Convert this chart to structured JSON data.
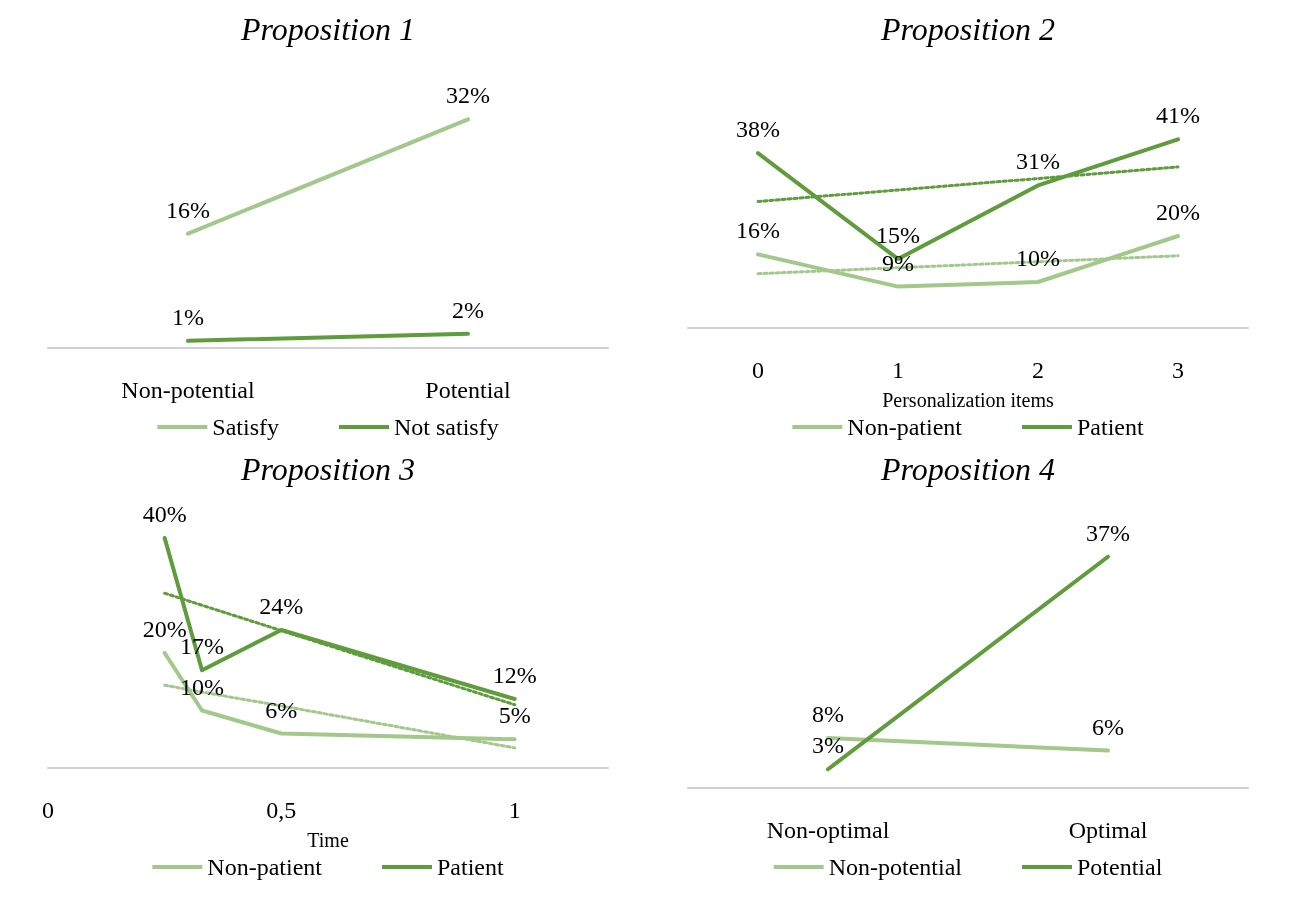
{
  "chart_data": [
    {
      "type": "line",
      "title": "Proposition 1",
      "categories": [
        "Non-potential",
        "Potential"
      ],
      "series": [
        {
          "name": "Satisfy",
          "color": "#a2c98b",
          "values": [
            16,
            32
          ],
          "value_labels": [
            "16%",
            "32%"
          ]
        },
        {
          "name": "Not satisfy",
          "color": "#5e9c3c",
          "values": [
            1,
            2
          ],
          "value_labels": [
            "1%",
            "2%"
          ]
        }
      ],
      "legend": "bottom",
      "grid": false,
      "marker": "none",
      "line_style": "solid"
    },
    {
      "type": "line",
      "title": "Proposition 2",
      "xlabel": "Personalization items",
      "categories": [
        "0",
        "1",
        "2",
        "3"
      ],
      "series": [
        {
          "name": "Non-patient",
          "color": "#a2c98b",
          "values": [
            16,
            9,
            10,
            20
          ],
          "value_labels": [
            "16%",
            "9%",
            "10%",
            "20%"
          ]
        },
        {
          "name": "Patient",
          "color": "#5e9c3c",
          "values": [
            38,
            15,
            31,
            41
          ],
          "value_labels": [
            "38%",
            "15%",
            "31%",
            "41%"
          ]
        },
        {
          "color": "#a2c98b",
          "values": [
            11.8,
            13.1,
            14.4,
            15.7
          ],
          "line_style": "dotted"
        },
        {
          "color": "#5e9c3c",
          "values": [
            27.5,
            30,
            32.5,
            35
          ],
          "line_style": "dotted"
        }
      ],
      "legend": "bottom",
      "grid": false,
      "marker": "none",
      "line_style": "solid"
    },
    {
      "type": "line",
      "title": "Proposition 3",
      "xlabel": "Time",
      "x": [
        0.25,
        0.33,
        0.5,
        1
      ],
      "xlim": [
        0,
        1.2
      ],
      "xticks": [
        0,
        {
          "value": 0.5,
          "label": "0,5"
        },
        1
      ],
      "series": [
        {
          "name": "Non-patient",
          "color": "#a2c98b",
          "values": [
            20,
            10,
            6,
            5
          ],
          "value_labels": [
            "20%",
            "10%",
            "6%",
            "5%"
          ]
        },
        {
          "name": "Patient",
          "color": "#5e9c3c",
          "values": [
            40,
            17,
            24,
            12
          ],
          "value_labels": [
            "40%",
            "17%",
            "24%",
            "12%"
          ]
        },
        {
          "color": "#a2c98b",
          "values": [
            14.4,
            13.2,
            10.8,
            3.5
          ],
          "line_style": "dotted"
        },
        {
          "color": "#5e9c3c",
          "values": [
            30.4,
            28.3,
            23.9,
            11
          ],
          "line_style": "dotted"
        }
      ],
      "legend": "bottom",
      "grid": false,
      "marker": "none",
      "line_style": "solid"
    },
    {
      "type": "line",
      "title": "Proposition 4",
      "categories": [
        "Non-optimal",
        "Optimal"
      ],
      "series": [
        {
          "name": "Non-potential",
          "color": "#a2c98b",
          "values": [
            8,
            6
          ],
          "value_labels": [
            "8%",
            "6%"
          ]
        },
        {
          "name": "Potential",
          "color": "#5e9c3c",
          "values": [
            3,
            37
          ],
          "value_labels": [
            "3%",
            "37%"
          ]
        }
      ],
      "legend": "bottom",
      "grid": false,
      "marker": "none",
      "line_style": "solid"
    }
  ]
}
